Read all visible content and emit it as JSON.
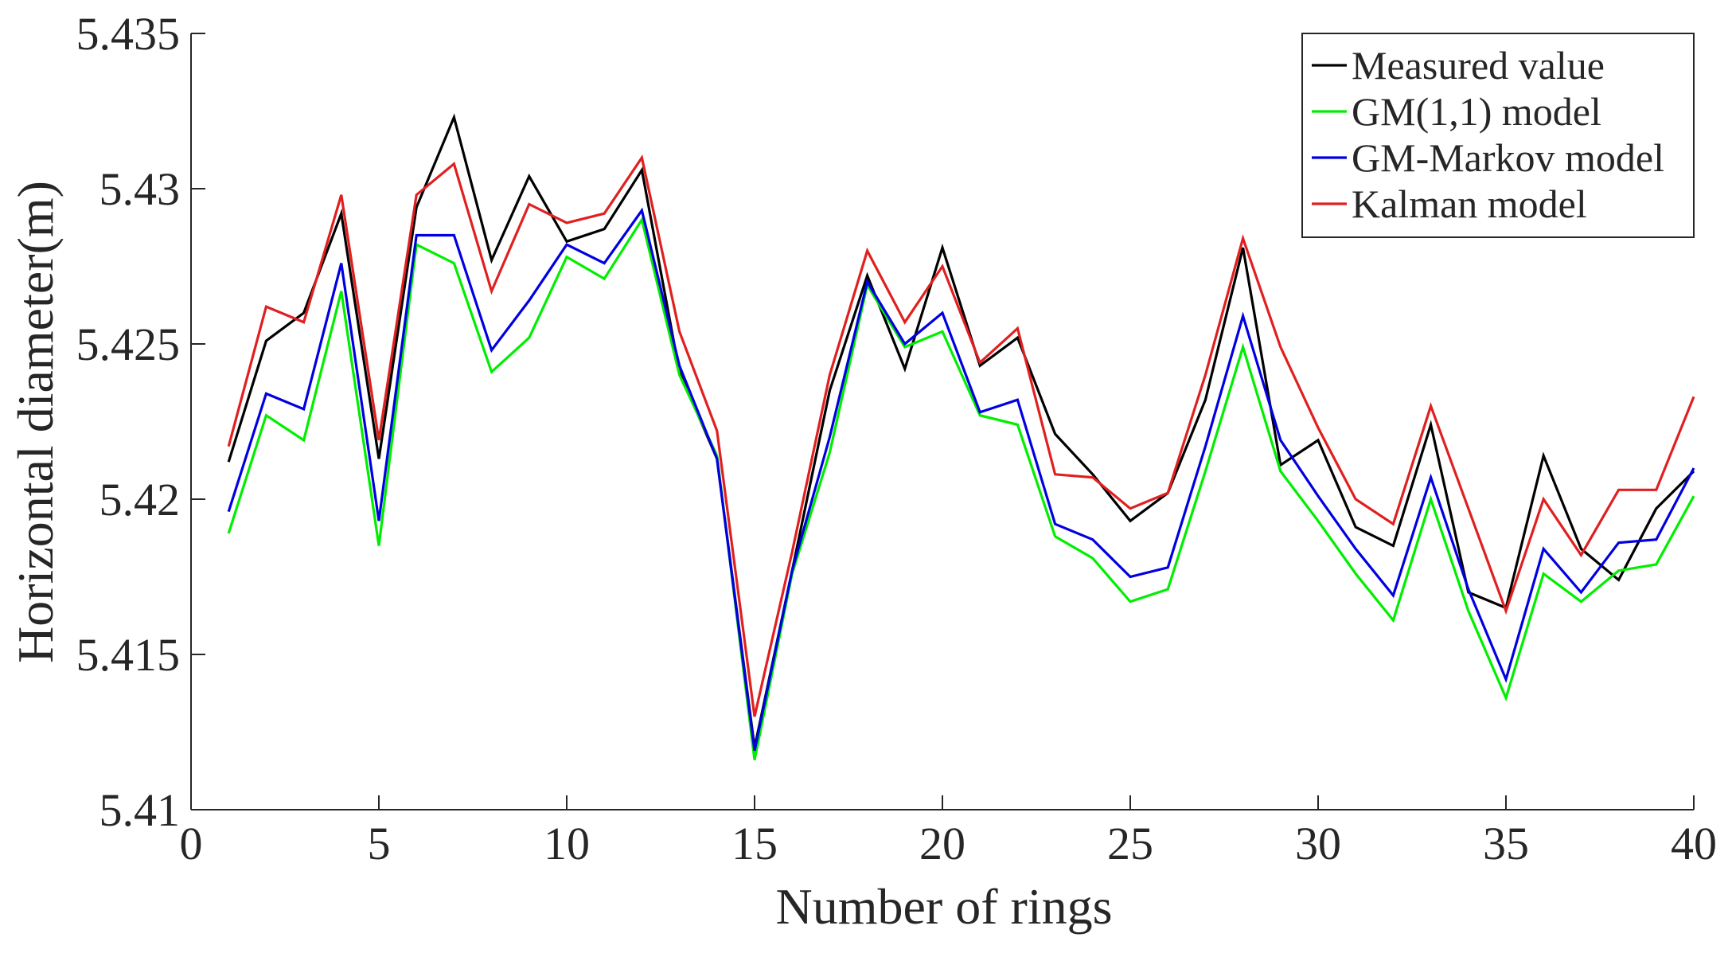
{
  "chart_data": {
    "type": "line",
    "title": "",
    "xlabel": "Number of rings",
    "ylabel": "Horizontal diameter(m)",
    "xlim": [
      0,
      40
    ],
    "ylim": [
      5.41,
      5.435
    ],
    "xticks": [
      0,
      5,
      10,
      15,
      20,
      25,
      30,
      35,
      40
    ],
    "xtick_labels": [
      "0",
      "5",
      "10",
      "15",
      "20",
      "25",
      "30",
      "35",
      "40"
    ],
    "yticks": [
      5.41,
      5.415,
      5.42,
      5.425,
      5.43,
      5.435
    ],
    "ytick_labels": [
      "5.41",
      "5.415",
      "5.42",
      "5.425",
      "5.43",
      "5.435"
    ],
    "grid": false,
    "legend_position": "top-right",
    "x": [
      1,
      2,
      3,
      4,
      5,
      6,
      7,
      8,
      9,
      10,
      11,
      12,
      13,
      14,
      15,
      16,
      17,
      18,
      19,
      20,
      21,
      22,
      23,
      24,
      25,
      26,
      27,
      28,
      29,
      30,
      31,
      32,
      33,
      34,
      35,
      36,
      37,
      38,
      39,
      40
    ],
    "series": [
      {
        "name": "Measured value",
        "color": "#000000",
        "values": [
          5.4212,
          5.4251,
          5.426,
          5.4292,
          5.4213,
          5.4294,
          5.4323,
          5.4277,
          5.4304,
          5.4283,
          5.4287,
          5.4306,
          5.4241,
          5.4213,
          5.412,
          5.4177,
          5.4235,
          5.4272,
          5.4242,
          5.4281,
          5.4243,
          5.4252,
          5.4221,
          5.4208,
          5.4193,
          5.4202,
          5.4232,
          5.4281,
          5.4211,
          5.4219,
          5.4191,
          5.4185,
          5.4224,
          5.417,
          5.4165,
          5.4214,
          5.4184,
          5.4174,
          5.4197,
          5.4209
        ]
      },
      {
        "name": "GM(1,1) model",
        "color": "#00ee00",
        "values": [
          5.4189,
          5.4227,
          5.4219,
          5.4267,
          5.4185,
          5.4282,
          5.4276,
          5.4241,
          5.4252,
          5.4278,
          5.4271,
          5.429,
          5.424,
          5.4214,
          5.4116,
          5.4176,
          5.4215,
          5.4269,
          5.4249,
          5.4254,
          5.4227,
          5.4224,
          5.4188,
          5.4181,
          5.4167,
          5.4171,
          5.4209,
          5.4249,
          5.4209,
          5.4193,
          5.4176,
          5.4161,
          5.42,
          5.4164,
          5.4136,
          5.4176,
          5.4167,
          5.4177,
          5.4179,
          5.4201
        ]
      },
      {
        "name": "GM-Markov model",
        "color": "#0000e0",
        "values": [
          5.4196,
          5.4234,
          5.4229,
          5.4276,
          5.4193,
          5.4285,
          5.4285,
          5.4248,
          5.4264,
          5.4282,
          5.4276,
          5.4293,
          5.4243,
          5.4213,
          5.4119,
          5.4177,
          5.422,
          5.427,
          5.425,
          5.426,
          5.4228,
          5.4232,
          5.4192,
          5.4187,
          5.4175,
          5.4178,
          5.4217,
          5.4259,
          5.4219,
          5.4201,
          5.4184,
          5.4169,
          5.4207,
          5.4171,
          5.4142,
          5.4184,
          5.417,
          5.4186,
          5.4187,
          5.421
        ]
      },
      {
        "name": "Kalman model",
        "color": "#e02020",
        "values": [
          5.4217,
          5.4262,
          5.4257,
          5.4298,
          5.4219,
          5.4298,
          5.4308,
          5.4267,
          5.4295,
          5.4289,
          5.4292,
          5.431,
          5.4254,
          5.4222,
          5.413,
          5.4183,
          5.424,
          5.428,
          5.4257,
          5.4275,
          5.4244,
          5.4255,
          5.4208,
          5.4207,
          5.4197,
          5.4202,
          5.424,
          5.4284,
          5.4249,
          5.4223,
          5.42,
          5.4192,
          5.423,
          5.4197,
          5.4164,
          5.42,
          5.4182,
          5.4203,
          5.4203,
          5.4233
        ]
      }
    ]
  }
}
